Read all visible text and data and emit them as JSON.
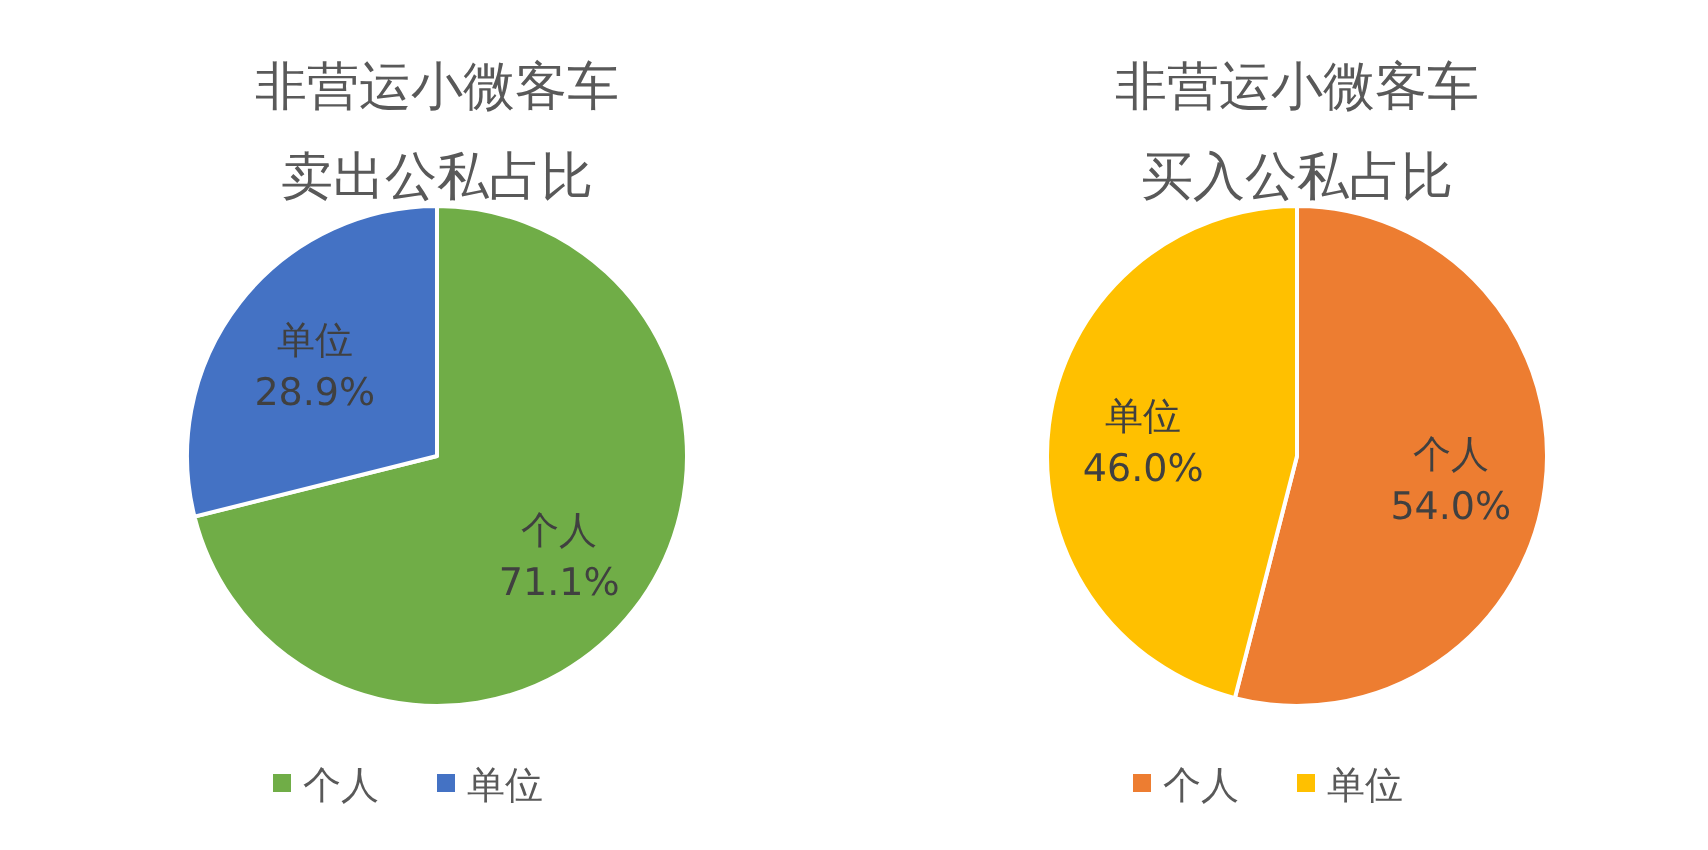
{
  "chart_data": [
    {
      "type": "pie",
      "title": "非营运小微客车卖出公私占比",
      "categories": [
        "个人",
        "单位"
      ],
      "values": [
        71.1,
        28.9
      ],
      "colors": [
        "#70ad47",
        "#4472c4"
      ],
      "value_labels": [
        "71.1%",
        "28.9%"
      ],
      "legend": "bottom"
    },
    {
      "type": "pie",
      "title": "非营运小微客车买入公私占比",
      "categories": [
        "个人",
        "单位"
      ],
      "values": [
        54.0,
        46.0
      ],
      "colors": [
        "#ed7d31",
        "#ffc000"
      ],
      "value_labels": [
        "54.0%",
        "46.0%"
      ],
      "legend": "bottom"
    }
  ]
}
